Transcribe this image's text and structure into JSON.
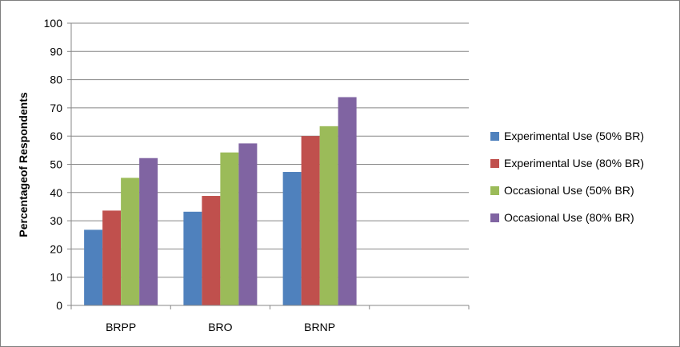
{
  "chart_data": {
    "type": "bar",
    "title": "",
    "xlabel": "",
    "ylabel": "Percentageof Respondents",
    "categories": [
      "BRPP",
      "BRO",
      "BRNP",
      ""
    ],
    "series": [
      {
        "name": "Experimental Use (50% BR)",
        "color": "#4F81BD",
        "values": [
          26.8,
          33.2,
          47.3,
          null
        ]
      },
      {
        "name": "Experimental Use (80% BR)",
        "color": "#C0504D",
        "values": [
          33.6,
          38.8,
          60.0,
          null
        ]
      },
      {
        "name": "Occasional Use (50% BR)",
        "color": "#9BBB59",
        "values": [
          45.2,
          54.2,
          63.5,
          null
        ]
      },
      {
        "name": "Occasional Use (80% BR)",
        "color": "#8064A2",
        "values": [
          52.2,
          57.4,
          73.8,
          null
        ]
      }
    ],
    "ylim": [
      0,
      100
    ],
    "yticks": [
      0,
      10,
      20,
      30,
      40,
      50,
      60,
      70,
      80,
      90,
      100
    ],
    "grid": true,
    "legend_position": "right"
  }
}
